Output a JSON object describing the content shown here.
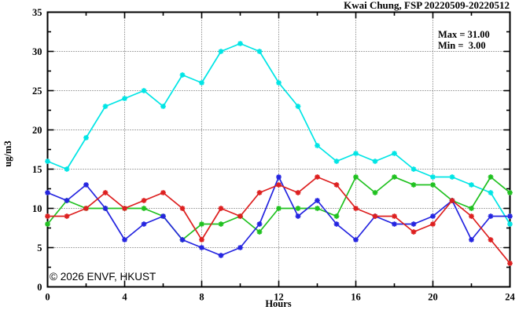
{
  "header": {
    "title": "Kwai Chung, FSP 20220509-20220512"
  },
  "annotations": {
    "max_label": "Max = 31.00",
    "min_label": "Min =  3.00"
  },
  "watermark": "© 2026 ENVF, HKUST",
  "colors": {
    "cyan_series": "#00e5e5",
    "green_series": "#1fc11f",
    "blue_series": "#2424e0",
    "red_series": "#dd1f1f",
    "grid": "#555555",
    "frame": "#000000",
    "watermark": "#dedede"
  },
  "chart_data": {
    "type": "line",
    "title": "Kwai Chung, FSP 20220509-20220512",
    "xlabel": "Hours",
    "ylabel": "ug/m3",
    "xlim": [
      0,
      24
    ],
    "ylim": [
      0,
      35
    ],
    "x_major_ticks": [
      0,
      4,
      8,
      12,
      16,
      20,
      24
    ],
    "x_minor_step": 2,
    "y_major_ticks": [
      0,
      5,
      10,
      15,
      20,
      25,
      30,
      35
    ],
    "y_minor_step": 2.5,
    "grid": true,
    "legend_position": "none",
    "x": [
      0,
      1,
      2,
      3,
      4,
      5,
      6,
      7,
      8,
      9,
      10,
      11,
      12,
      13,
      14,
      15,
      16,
      17,
      18,
      19,
      20,
      21,
      22,
      23,
      24
    ],
    "series": [
      {
        "name": "cyan-line",
        "color": "#00e5e5",
        "values": [
          16,
          15,
          19,
          23,
          24,
          25,
          23,
          27,
          26,
          30,
          31,
          30,
          26,
          23,
          18,
          16,
          17,
          16,
          17,
          15,
          14,
          14,
          13,
          12,
          8
        ]
      },
      {
        "name": "green-line",
        "color": "#1fc11f",
        "values": [
          8,
          11,
          10,
          10,
          10,
          10,
          9,
          6,
          8,
          8,
          9,
          7,
          10,
          10,
          10,
          9,
          14,
          12,
          14,
          13,
          13,
          11,
          10,
          14,
          12
        ]
      },
      {
        "name": "blue-line",
        "color": "#2424e0",
        "values": [
          12,
          11,
          13,
          10,
          6,
          8,
          9,
          6,
          5,
          4,
          5,
          8,
          14,
          9,
          11,
          8,
          6,
          9,
          8,
          8,
          9,
          11,
          6,
          9,
          9
        ]
      },
      {
        "name": "red-line",
        "color": "#dd1f1f",
        "values": [
          9,
          9,
          10,
          12,
          10,
          11,
          12,
          10,
          6,
          10,
          9,
          12,
          13,
          12,
          14,
          13,
          10,
          9,
          9,
          7,
          8,
          11,
          9,
          6,
          3
        ]
      }
    ],
    "stats": {
      "max": 31.0,
      "min": 3.0
    }
  }
}
